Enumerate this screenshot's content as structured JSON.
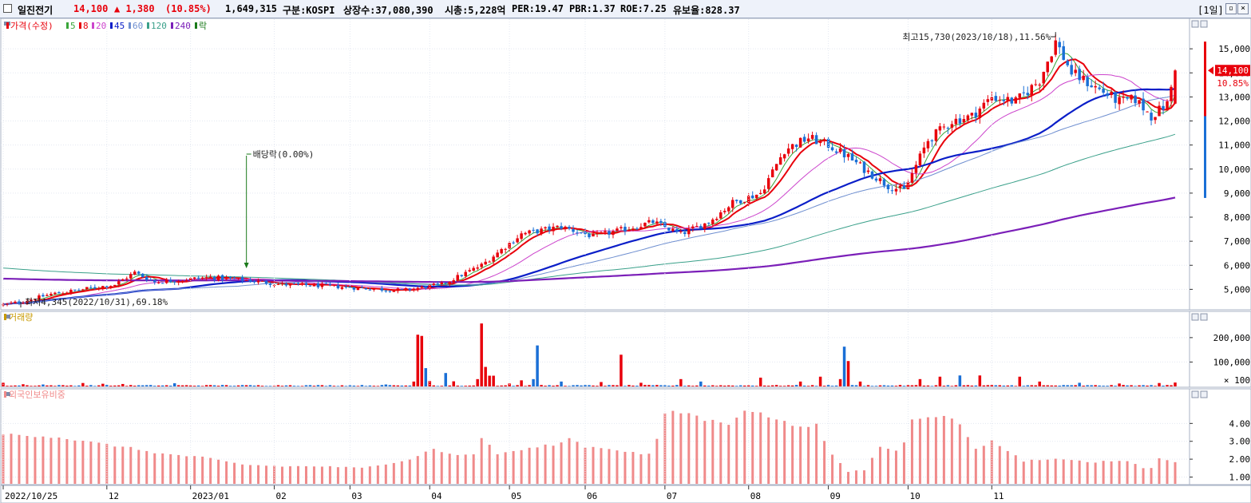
{
  "header": {
    "name": "일진전기",
    "price": "14,100",
    "change": "▲ 1,380",
    "change_pct": "(10.85%)",
    "volume": "1,649,315",
    "market": "구분:KOSPI",
    "shares": "상장수:37,080,390",
    "mcap": "시총:5,228억",
    "per": "PER:19.47",
    "pbr": "PBR:1.37",
    "roe": "ROE:7.25",
    "turnover": "유보율:828.37",
    "period": "[1일]",
    "btn_restore": "▫",
    "btn_close": "×"
  },
  "colors": {
    "up": "#e8000b",
    "down": "#1a6fd6",
    "ma5": "#3aa63a",
    "ma8": "#e8000b",
    "ma20": "#cc44cc",
    "ma45": "#0a1ec8",
    "ma60": "#6f8fd0",
    "ma120": "#3aa08a",
    "ma240": "#7b1fb8",
    "foreign": "#f08a8a",
    "exdiv": "#1a7a1a"
  },
  "chart_data": [
    {
      "type": "candlestick",
      "legend": [
        {
          "label": "가격(수정)",
          "color": "#e8000b"
        },
        {
          "label": "5",
          "color": "#3aa63a"
        },
        {
          "label": "8",
          "color": "#e8000b"
        },
        {
          "label": "20",
          "color": "#cc44cc"
        },
        {
          "label": "45",
          "color": "#0a1ec8"
        },
        {
          "label": "60",
          "color": "#6f8fd0"
        },
        {
          "label": "120",
          "color": "#3aa08a"
        },
        {
          "label": "240",
          "color": "#7b1fb8"
        },
        {
          "label": "락",
          "color": "#1a7a1a"
        }
      ],
      "x_labels": [
        "2022/10/25",
        "12",
        "2023/01",
        "02",
        "03",
        "04",
        "05",
        "06",
        "07",
        "08",
        "09",
        "10",
        "11"
      ],
      "y_ticks": [
        "15,000",
        "14,000",
        "13,000",
        "12,000",
        "11,000",
        "10,000",
        "9,000",
        "8,000",
        "7,000",
        "6,000",
        "5,000"
      ],
      "ylim": [
        4150,
        16000
      ],
      "price_anchors": [
        [
          0,
          4350
        ],
        [
          5,
          4500
        ],
        [
          12,
          4800
        ],
        [
          20,
          5000
        ],
        [
          28,
          5200
        ],
        [
          33,
          5700
        ],
        [
          38,
          5300
        ],
        [
          45,
          5400
        ],
        [
          52,
          5500
        ],
        [
          60,
          5400
        ],
        [
          70,
          5200
        ],
        [
          80,
          5150
        ],
        [
          90,
          5050
        ],
        [
          100,
          4950
        ],
        [
          110,
          5200
        ],
        [
          120,
          6000
        ],
        [
          130,
          7300
        ],
        [
          140,
          7600
        ],
        [
          148,
          7200
        ],
        [
          156,
          7500
        ],
        [
          163,
          7800
        ],
        [
          170,
          7300
        ],
        [
          177,
          7800
        ],
        [
          183,
          8600
        ],
        [
          190,
          9000
        ],
        [
          196,
          10800
        ],
        [
          202,
          11300
        ],
        [
          207,
          11000
        ],
        [
          212,
          10500
        ],
        [
          216,
          10000
        ],
        [
          222,
          9300
        ],
        [
          226,
          9100
        ],
        [
          232,
          11200
        ],
        [
          238,
          12000
        ],
        [
          243,
          12200
        ],
        [
          248,
          13000
        ],
        [
          254,
          12800
        ],
        [
          260,
          13700
        ],
        [
          264,
          15300
        ],
        [
          268,
          14000
        ],
        [
          274,
          13400
        ],
        [
          280,
          12800
        ],
        [
          284,
          12900
        ],
        [
          288,
          12200
        ],
        [
          292,
          12700
        ],
        [
          294,
          14100
        ]
      ],
      "candle_count": 295,
      "last": {
        "open": 12720,
        "high": 14150,
        "low": 12700,
        "close": 14100
      },
      "ma_windows": [
        5,
        8,
        20,
        45,
        60,
        120,
        240
      ],
      "ma240_start": 5450,
      "annotations": {
        "high": "최고15,730(2023/10/18),11.56%",
        "low": "최저4,345(2022/10/31),69.18%",
        "ex_dividend": "배당락(0.00%)",
        "ex_dividend_index": 49
      },
      "price_tag": {
        "value": "14,100",
        "pct": "10.85%"
      }
    },
    {
      "type": "bar",
      "legend": [
        {
          "label": "거래량",
          "color": "#c89a00"
        }
      ],
      "y_ticks": [
        "200,000",
        "100,000"
      ],
      "y_unit": "× 100",
      "ylim": [
        0,
        265000
      ],
      "spikes": [
        [
          0,
          15000
        ],
        [
          5,
          9000
        ],
        [
          10,
          8000
        ],
        [
          20,
          14000
        ],
        [
          25,
          11000
        ],
        [
          30,
          10000
        ],
        [
          43,
          13000
        ],
        [
          55,
          6000
        ],
        [
          72,
          5000
        ],
        [
          96,
          8000
        ],
        [
          103,
          20000
        ],
        [
          104,
          212000
        ],
        [
          105,
          207000
        ],
        [
          106,
          75000
        ],
        [
          107,
          22000
        ],
        [
          111,
          55000
        ],
        [
          113,
          21000
        ],
        [
          119,
          30000
        ],
        [
          120,
          258000
        ],
        [
          121,
          80000
        ],
        [
          122,
          44000
        ],
        [
          123,
          44000
        ],
        [
          127,
          12000
        ],
        [
          130,
          25000
        ],
        [
          133,
          30000
        ],
        [
          134,
          168000
        ],
        [
          140,
          20000
        ],
        [
          150,
          18000
        ],
        [
          155,
          130000
        ],
        [
          160,
          15000
        ],
        [
          170,
          30000
        ],
        [
          175,
          20000
        ],
        [
          190,
          36000
        ],
        [
          200,
          20000
        ],
        [
          205,
          40000
        ],
        [
          210,
          30000
        ],
        [
          211,
          163000
        ],
        [
          212,
          104000
        ],
        [
          215,
          20000
        ],
        [
          230,
          30000
        ],
        [
          235,
          40000
        ],
        [
          240,
          45000
        ],
        [
          245,
          45000
        ],
        [
          255,
          40000
        ],
        [
          260,
          20000
        ],
        [
          270,
          15000
        ],
        [
          280,
          12000
        ],
        [
          290,
          14000
        ],
        [
          294,
          16000
        ]
      ]
    },
    {
      "type": "bar",
      "legend": [
        {
          "label": "외국인보유비중",
          "color": "#f08a8a"
        }
      ],
      "y_ticks": [
        "4.00",
        "3.00",
        "2.00",
        "1.00"
      ],
      "ylim": [
        0.62,
        5.4
      ],
      "anchors": [
        [
          0,
          3.4
        ],
        [
          10,
          3.3
        ],
        [
          15,
          3.2
        ],
        [
          20,
          3.0
        ],
        [
          30,
          2.7
        ],
        [
          40,
          2.3
        ],
        [
          50,
          2.1
        ],
        [
          60,
          1.7
        ],
        [
          70,
          1.6
        ],
        [
          80,
          1.6
        ],
        [
          90,
          1.5
        ],
        [
          95,
          1.7
        ],
        [
          102,
          2.0
        ],
        [
          108,
          2.6
        ],
        [
          113,
          2.2
        ],
        [
          118,
          2.3
        ],
        [
          120,
          3.2
        ],
        [
          124,
          2.3
        ],
        [
          132,
          2.6
        ],
        [
          140,
          2.9
        ],
        [
          142,
          3.2
        ],
        [
          146,
          2.7
        ],
        [
          152,
          2.6
        ],
        [
          160,
          2.3
        ],
        [
          163,
          2.3
        ],
        [
          166,
          4.6
        ],
        [
          172,
          4.6
        ],
        [
          176,
          4.2
        ],
        [
          182,
          4.0
        ],
        [
          186,
          4.8
        ],
        [
          192,
          4.4
        ],
        [
          198,
          3.9
        ],
        [
          204,
          3.9
        ],
        [
          208,
          2.2
        ],
        [
          212,
          1.3
        ],
        [
          216,
          1.4
        ],
        [
          220,
          2.7
        ],
        [
          224,
          2.5
        ],
        [
          227,
          3.1
        ],
        [
          228,
          4.3
        ],
        [
          236,
          4.5
        ],
        [
          240,
          3.9
        ],
        [
          244,
          2.6
        ],
        [
          248,
          3.0
        ],
        [
          252,
          2.5
        ],
        [
          256,
          1.9
        ],
        [
          262,
          2.0
        ],
        [
          268,
          2.0
        ],
        [
          272,
          1.8
        ],
        [
          276,
          1.9
        ],
        [
          282,
          1.9
        ],
        [
          286,
          1.5
        ],
        [
          288,
          1.5
        ],
        [
          290,
          2.1
        ],
        [
          294,
          1.8
        ]
      ]
    }
  ]
}
